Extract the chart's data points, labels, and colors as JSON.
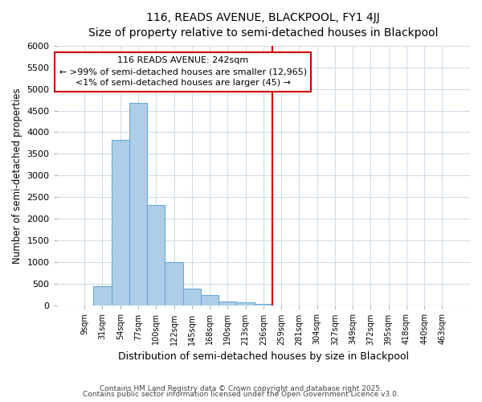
{
  "title": "116, READS AVENUE, BLACKPOOL, FY1 4JJ",
  "subtitle": "Size of property relative to semi-detached houses in Blackpool",
  "xlabel": "Distribution of semi-detached houses by size in Blackpool",
  "ylabel": "Number of semi-detached properties",
  "categories": [
    "9sqm",
    "31sqm",
    "54sqm",
    "77sqm",
    "100sqm",
    "122sqm",
    "145sqm",
    "168sqm",
    "190sqm",
    "213sqm",
    "236sqm",
    "259sqm",
    "281sqm",
    "304sqm",
    "327sqm",
    "349sqm",
    "372sqm",
    "395sqm",
    "418sqm",
    "440sqm",
    "463sqm"
  ],
  "values": [
    0,
    450,
    3820,
    4680,
    2320,
    1000,
    400,
    250,
    100,
    75,
    35,
    0,
    0,
    0,
    0,
    0,
    0,
    0,
    0,
    0,
    0
  ],
  "bar_color": "#aecde8",
  "bar_edge_color": "#6aaad4",
  "vline_color": "#cc0000",
  "annotation_text": "116 READS AVENUE: 242sqm\n← >99% of semi-detached houses are smaller (12,965)\n<1% of semi-detached houses are larger (45) →",
  "annotation_box_color": "#cc0000",
  "ylim": [
    0,
    6000
  ],
  "yticks": [
    0,
    500,
    1000,
    1500,
    2000,
    2500,
    3000,
    3500,
    4000,
    4500,
    5000,
    5500,
    6000
  ],
  "footnote1": "Contains HM Land Registry data © Crown copyright and database right 2025.",
  "footnote2": "Contains public sector information licensed under the Open Government Licence v3.0.",
  "bg_color": "#ffffff",
  "plot_bg_color": "#ffffff",
  "grid_color": "#d0dce8"
}
